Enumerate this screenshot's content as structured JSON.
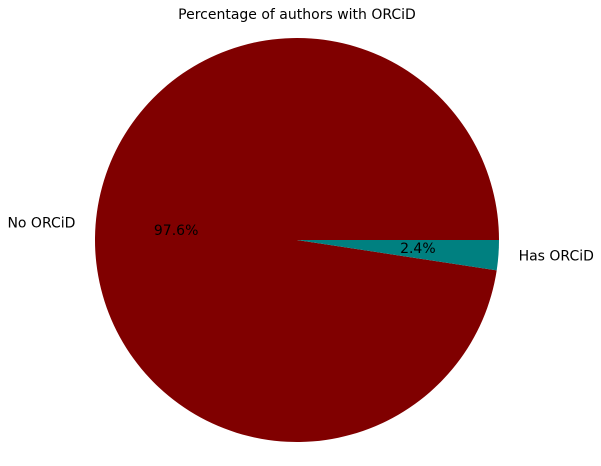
{
  "chart_data": {
    "type": "pie",
    "title": "Percentage of authors with ORCiD",
    "categories": [
      "No ORCiD",
      "Has ORCiD"
    ],
    "values": [
      97.6,
      2.4
    ],
    "value_labels": [
      "97.6%",
      "2.4%"
    ],
    "colors": [
      "#800000",
      "#008080"
    ],
    "legend": "none"
  }
}
